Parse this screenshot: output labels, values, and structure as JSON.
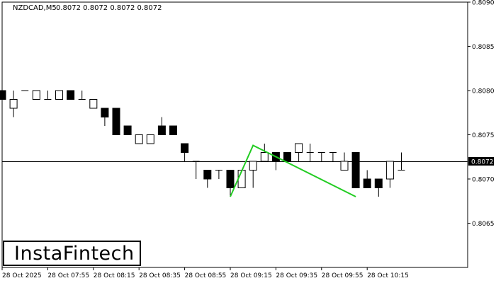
{
  "header": {
    "symbol": "NZDCAD,M5",
    "ohlc": "0.8072 0.8072 0.8072 0.8072"
  },
  "logo": {
    "text": "InstaFintech"
  },
  "colors": {
    "background": "#ffffff",
    "frame": "#000000",
    "bull_body": "#ffffff",
    "bear_body": "#000000",
    "pattern_line": "#22cc22",
    "price_line": "#000000"
  },
  "chart_data": {
    "type": "candlestick",
    "title": "NZDCAD,M5",
    "ylim": [
      0.806,
      0.809
    ],
    "y_ticks": [
      "0.8090",
      "0.8085",
      "0.8080",
      "0.8075",
      "0.8070",
      "0.8065"
    ],
    "x_ticks": [
      "28 Oct 2025",
      "28 Oct 07:55",
      "28 Oct 08:15",
      "28 Oct 08:35",
      "28 Oct 08:55",
      "28 Oct 09:15",
      "28 Oct 09:35",
      "28 Oct 09:55",
      "28 Oct 10:15"
    ],
    "current_price": "0.8072",
    "candles": [
      {
        "o": 0.808,
        "h": 0.8082,
        "l": 0.8079,
        "c": 0.8079
      },
      {
        "o": 0.8078,
        "h": 0.808,
        "l": 0.8077,
        "c": 0.8079
      },
      {
        "o": 0.808,
        "h": 0.808,
        "l": 0.808,
        "c": 0.808
      },
      {
        "o": 0.8079,
        "h": 0.808,
        "l": 0.8079,
        "c": 0.808
      },
      {
        "o": 0.8079,
        "h": 0.808,
        "l": 0.8079,
        "c": 0.8079
      },
      {
        "o": 0.8079,
        "h": 0.808,
        "l": 0.8079,
        "c": 0.808
      },
      {
        "o": 0.808,
        "h": 0.808,
        "l": 0.8079,
        "c": 0.8079
      },
      {
        "o": 0.8079,
        "h": 0.808,
        "l": 0.8079,
        "c": 0.8079
      },
      {
        "o": 0.8078,
        "h": 0.8079,
        "l": 0.8078,
        "c": 0.8079
      },
      {
        "o": 0.8078,
        "h": 0.8078,
        "l": 0.8076,
        "c": 0.8077
      },
      {
        "o": 0.8078,
        "h": 0.8078,
        "l": 0.8075,
        "c": 0.8075
      },
      {
        "o": 0.8076,
        "h": 0.8076,
        "l": 0.8075,
        "c": 0.8075
      },
      {
        "o": 0.8074,
        "h": 0.8075,
        "l": 0.8074,
        "c": 0.8075
      },
      {
        "o": 0.8074,
        "h": 0.8075,
        "l": 0.8074,
        "c": 0.8075
      },
      {
        "o": 0.8076,
        "h": 0.8077,
        "l": 0.8075,
        "c": 0.8075
      },
      {
        "o": 0.8076,
        "h": 0.8076,
        "l": 0.8075,
        "c": 0.8075
      },
      {
        "o": 0.8074,
        "h": 0.8074,
        "l": 0.8072,
        "c": 0.8073
      },
      {
        "o": 0.8072,
        "h": 0.8072,
        "l": 0.807,
        "c": 0.8072
      },
      {
        "o": 0.8071,
        "h": 0.8071,
        "l": 0.8069,
        "c": 0.807
      },
      {
        "o": 0.8071,
        "h": 0.8071,
        "l": 0.807,
        "c": 0.8071
      },
      {
        "o": 0.8071,
        "h": 0.8071,
        "l": 0.8068,
        "c": 0.8069
      },
      {
        "o": 0.8069,
        "h": 0.8071,
        "l": 0.8069,
        "c": 0.8071
      },
      {
        "o": 0.8071,
        "h": 0.8072,
        "l": 0.8069,
        "c": 0.8072
      },
      {
        "o": 0.8072,
        "h": 0.8074,
        "l": 0.8072,
        "c": 0.8073
      },
      {
        "o": 0.8073,
        "h": 0.8073,
        "l": 0.8071,
        "c": 0.8072
      },
      {
        "o": 0.8073,
        "h": 0.8073,
        "l": 0.8072,
        "c": 0.8072
      },
      {
        "o": 0.8073,
        "h": 0.8074,
        "l": 0.8072,
        "c": 0.8074
      },
      {
        "o": 0.8073,
        "h": 0.8074,
        "l": 0.8072,
        "c": 0.8073
      },
      {
        "o": 0.8073,
        "h": 0.8073,
        "l": 0.8072,
        "c": 0.8073
      },
      {
        "o": 0.8073,
        "h": 0.8073,
        "l": 0.8072,
        "c": 0.8073
      },
      {
        "o": 0.8071,
        "h": 0.8073,
        "l": 0.8071,
        "c": 0.8072
      },
      {
        "o": 0.8073,
        "h": 0.8073,
        "l": 0.8069,
        "c": 0.8069
      },
      {
        "o": 0.807,
        "h": 0.8071,
        "l": 0.8069,
        "c": 0.8069
      },
      {
        "o": 0.807,
        "h": 0.807,
        "l": 0.8068,
        "c": 0.8069
      },
      {
        "o": 0.807,
        "h": 0.8072,
        "l": 0.8069,
        "c": 0.8072
      },
      {
        "o": 0.8071,
        "h": 0.8073,
        "l": 0.8071,
        "c": 0.8071
      }
    ],
    "pattern": {
      "name": "Triangle",
      "points": [
        {
          "i": 20,
          "y": 0.8068
        },
        {
          "i": 22,
          "y": 0.80738
        },
        {
          "i": 31,
          "y": 0.8068
        }
      ]
    }
  }
}
